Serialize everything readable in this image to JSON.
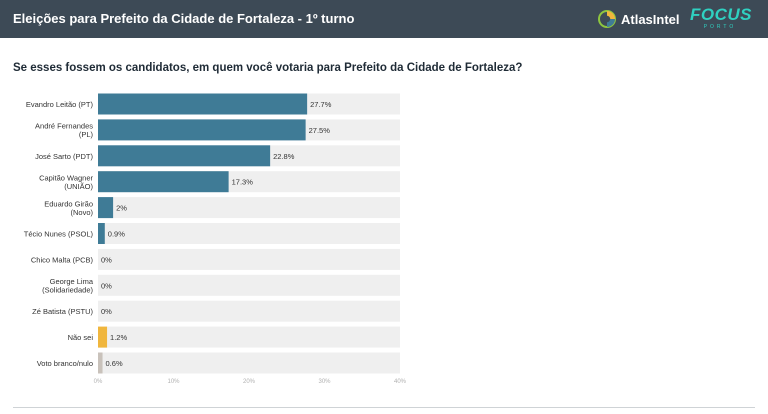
{
  "header": {
    "title": "Eleições para Prefeito da Cidade de Fortaleza - 1º turno",
    "atlas_logo_text": "AtlasIntel",
    "focus_logo_text": "FOCUS",
    "focus_logo_sub": "PORTO"
  },
  "colors": {
    "header_bg": "#3d4a56",
    "primary_bar": "#3f7b96",
    "nao_sei_bar": "#f0b63d",
    "branco_nulo_bar": "#c9c2bb",
    "bar_track": "#efefef",
    "focus_brand": "#2fd1c1"
  },
  "chart_data": {
    "type": "bar",
    "orientation": "horizontal",
    "title": "Se esses fossem os candidatos, em quem você votaria para Prefeito da Cidade de Fortaleza?",
    "categories": [
      [
        "Evandro Leitão (PT)"
      ],
      [
        "André Fernandes",
        "(PL)"
      ],
      [
        "José Sarto (PDT)"
      ],
      [
        "Capitão Wagner",
        "(UNIÃO)"
      ],
      [
        "Eduardo Girão",
        "(Novo)"
      ],
      [
        "Técio Nunes (PSOL)"
      ],
      [
        "Chico Malta (PCB)"
      ],
      [
        "George Lima",
        "(Solidariedade)"
      ],
      [
        "Zé Batista (PSTU)"
      ],
      [
        "Não sei"
      ],
      [
        "Voto branco/nulo"
      ]
    ],
    "values": [
      27.7,
      27.5,
      22.8,
      17.3,
      2,
      0.9,
      0,
      0,
      0,
      1.2,
      0.6
    ],
    "value_labels": [
      "27.7%",
      "27.5%",
      "22.8%",
      "17.3%",
      "2%",
      "0.9%",
      "0%",
      "0%",
      "0%",
      "1.2%",
      "0.6%"
    ],
    "bar_colors": [
      "#3f7b96",
      "#3f7b96",
      "#3f7b96",
      "#3f7b96",
      "#3f7b96",
      "#3f7b96",
      "#3f7b96",
      "#3f7b96",
      "#3f7b96",
      "#f0b63d",
      "#c9c2bb"
    ],
    "x_ticks": [
      "0%",
      "10%",
      "20%",
      "30%",
      "40%"
    ],
    "x_tick_values": [
      0,
      10,
      20,
      30,
      40
    ],
    "xlim": [
      0,
      40
    ],
    "grid": false,
    "legend": "none"
  }
}
